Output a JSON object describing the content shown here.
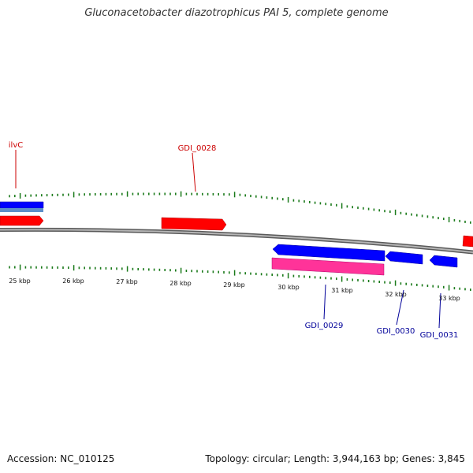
{
  "title": "Gluconacetobacter diazotrophicus PAI 5, complete genome",
  "footer": {
    "accession": "Accession: NC_010125",
    "topology": "Topology: circular; Length: 3,944,163 bp; Genes: 3,845"
  },
  "colors": {
    "forward_strand": "#ff0000",
    "forward_label": "#cc0000",
    "reverse_strand": "#0000ff",
    "reverse_label": "#000099",
    "rna": "#ff3399",
    "light_blue": "#5b8fc9",
    "ticks": "#1a7a1a",
    "backbone": "#8a8a8a"
  },
  "scale_labels": [
    "25 kbp",
    "26 kbp",
    "27 kbp",
    "28 kbp",
    "29 kbp",
    "30 kbp",
    "31 kbp",
    "32 kbp",
    "33 kbp"
  ],
  "gene_labels": [
    {
      "text": "ilvC",
      "strand": "forward"
    },
    {
      "text": "GDI_0028",
      "strand": "forward"
    },
    {
      "text": "GDI_0029",
      "strand": "reverse"
    },
    {
      "text": "GDI_0030",
      "strand": "reverse"
    },
    {
      "text": "GDI_0031",
      "strand": "reverse"
    }
  ]
}
